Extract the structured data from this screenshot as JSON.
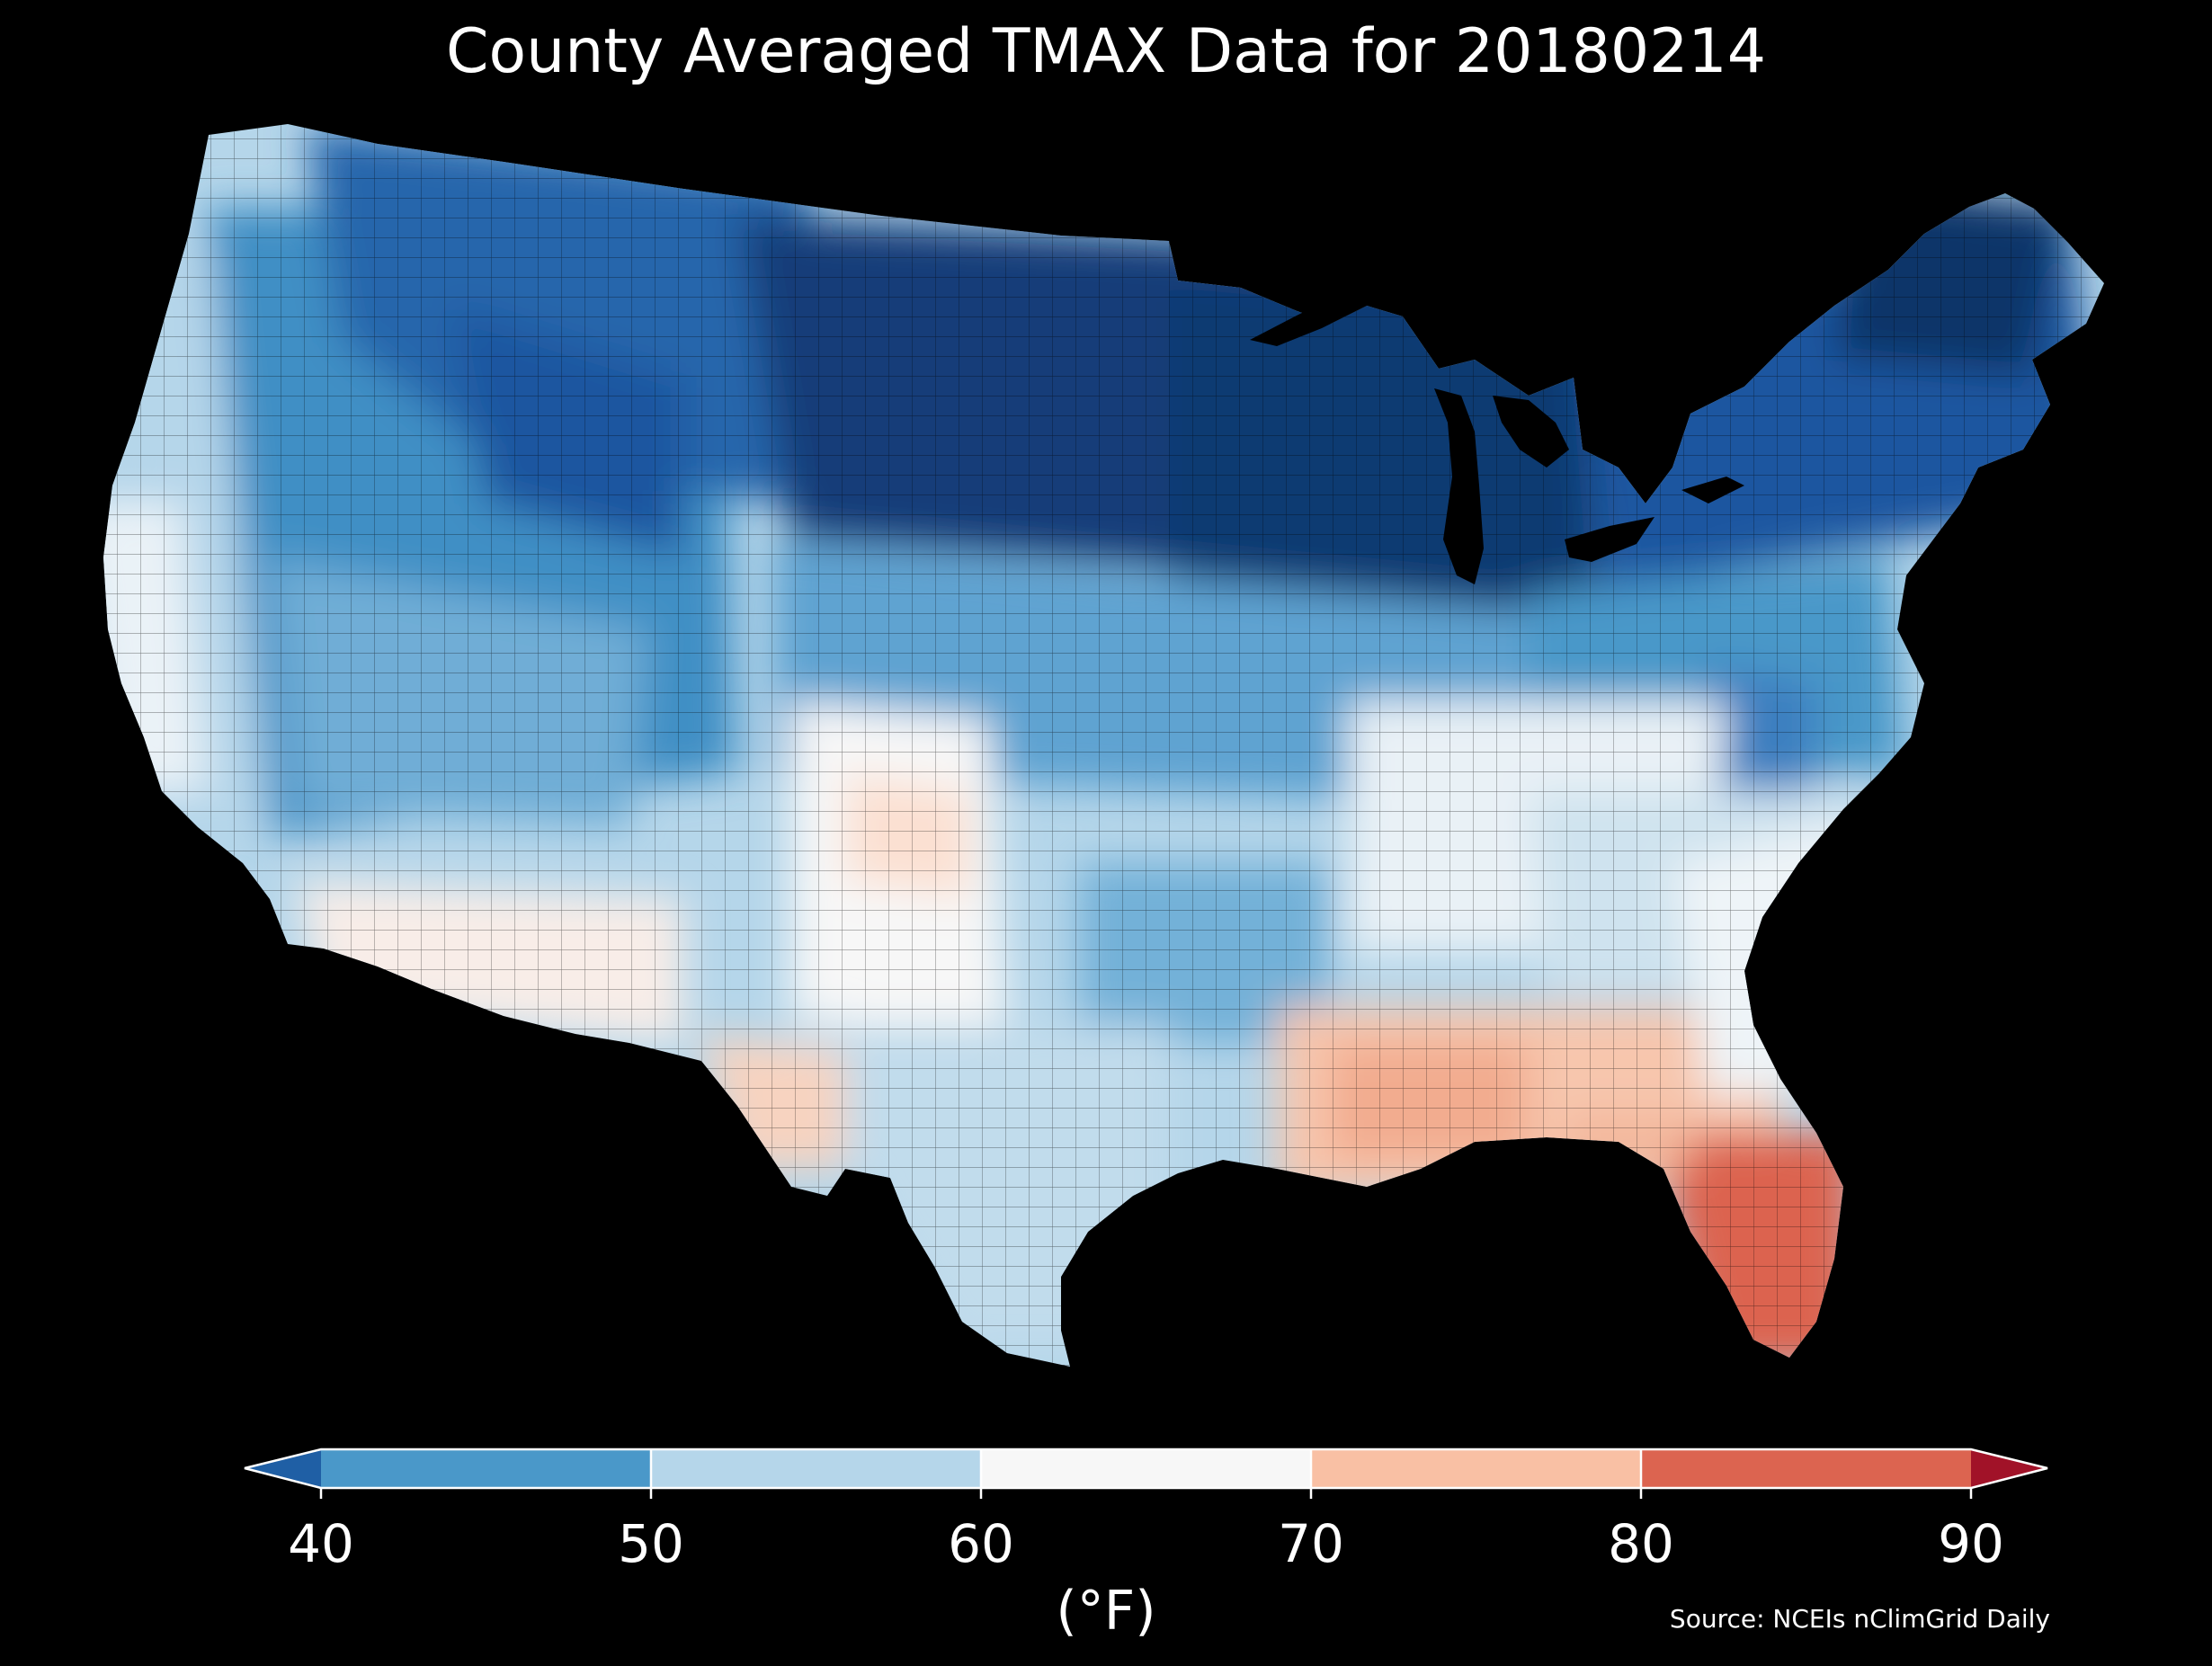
{
  "title": "County Averaged TMAX Data for 20180214",
  "source": "Source: NCEIs nClimGrid Daily",
  "colorbar": {
    "unit": "(°F)",
    "ticks": [
      "40",
      "50",
      "60",
      "70",
      "80",
      "90"
    ],
    "bins": [
      {
        "range": "<40",
        "color": "#1f5fa5"
      },
      {
        "range": "40-50",
        "color": "#4a98c9"
      },
      {
        "range": "50-60",
        "color": "#b5d6ea"
      },
      {
        "range": "60-70",
        "color": "#f7f7f7"
      },
      {
        "range": "70-80",
        "color": "#f9c0a4"
      },
      {
        "range": "80-90",
        "color": "#dc6450"
      },
      {
        "range": ">90",
        "color": "#a11228"
      }
    ]
  },
  "map": {
    "region": "Contiguous United States",
    "boundaries": "county",
    "ocean_color": "#000000",
    "regional_values": [
      {
        "region": "Northern Plains / Upper Midwest",
        "tmax_f": 30
      },
      {
        "region": "Northern Rockies",
        "tmax_f": 35
      },
      {
        "region": "Great Basin",
        "tmax_f": 45
      },
      {
        "region": "Pacific Coast",
        "tmax_f": 58
      },
      {
        "region": "Desert Southwest",
        "tmax_f": 66
      },
      {
        "region": "Southern High Plains",
        "tmax_f": 68
      },
      {
        "region": "Ohio Valley",
        "tmax_f": 58
      },
      {
        "region": "Northeast",
        "tmax_f": 35
      },
      {
        "region": "Gulf Coast",
        "tmax_f": 72
      },
      {
        "region": "Florida Peninsula",
        "tmax_f": 82
      }
    ]
  }
}
